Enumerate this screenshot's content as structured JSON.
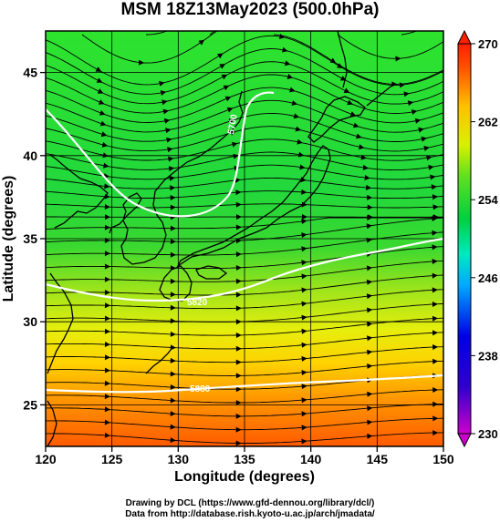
{
  "title": "MSM 18Z13May2023 (500.0hPa)",
  "x_axis": {
    "label": "Longitude (degrees)",
    "range": [
      120,
      150
    ],
    "ticks": [
      120,
      125,
      130,
      135,
      140,
      145,
      150
    ]
  },
  "y_axis": {
    "label": "Latitude  (degrees)",
    "range": [
      22.5,
      47.5
    ],
    "ticks": [
      25,
      30,
      35,
      40,
      45
    ]
  },
  "colorbar": {
    "range": [
      230,
      270
    ],
    "labels": [
      230,
      238,
      246,
      254,
      262,
      270
    ],
    "colors": [
      "#cc00cc",
      "#0000cc",
      "#00a0ff",
      "#00e0a0",
      "#00d030",
      "#c8f000",
      "#ffc000",
      "#ff3000"
    ]
  },
  "contours": [
    {
      "label": "5700"
    },
    {
      "label": "5820"
    },
    {
      "label": "5880"
    }
  ],
  "credits": {
    "line1": "Drawing by DCL (https://www.gfd-dennou.org/library/dcl/)",
    "line2": "Data from http://database.rish.kyoto-u.ac.jp/arch/jmadata/"
  }
}
